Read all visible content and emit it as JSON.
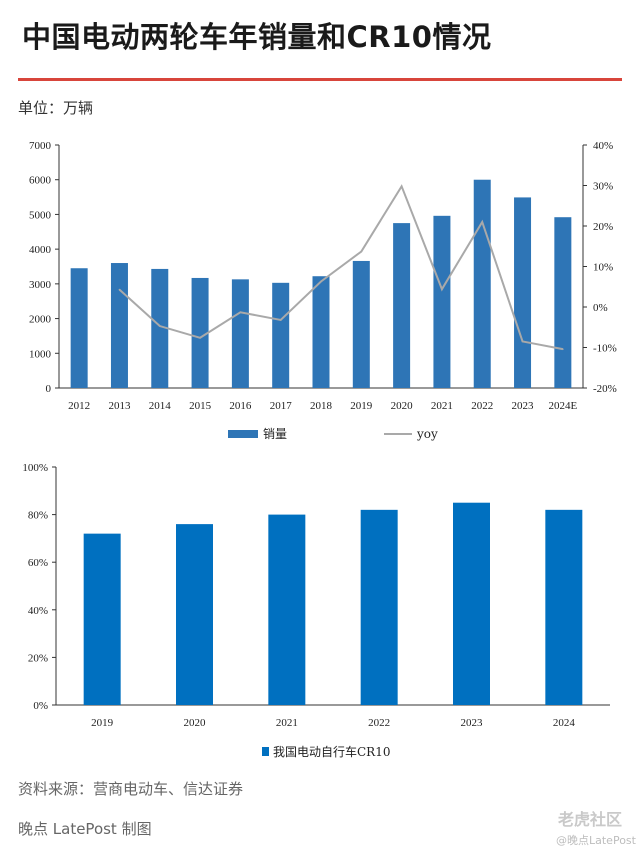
{
  "title": "中国电动两轮车年销量和CR10情况",
  "unit_label": "单位：万辆",
  "source": "资料来源：营商电动车、信达证券",
  "credit": "晚点 LatePost 制图",
  "watermark_1": "老虎社区",
  "watermark_2": "@晚点LatePost",
  "colors": {
    "bar": "#2e75b6",
    "bar2": "#0070c0",
    "line": "#a9a9a9",
    "accent": "#d8453b"
  },
  "chart_data": [
    {
      "type": "bar",
      "categories": [
        "2012",
        "2013",
        "2014",
        "2015",
        "2016",
        "2017",
        "2018",
        "2019",
        "2020",
        "2021",
        "2022",
        "2023",
        "2024E"
      ],
      "series": [
        {
          "name": "销量",
          "type": "bar",
          "axis": "left",
          "values": [
            3450,
            3600,
            3430,
            3170,
            3130,
            3030,
            3220,
            3660,
            4750,
            4960,
            6000,
            5490,
            4920
          ]
        },
        {
          "name": "yoy",
          "type": "line",
          "axis": "right",
          "values": [
            null,
            4.3,
            -4.7,
            -7.6,
            -1.3,
            -3.2,
            6.3,
            13.7,
            29.8,
            4.4,
            21.0,
            -8.5,
            -10.4
          ]
        }
      ],
      "yticks_left": [
        "0",
        "1000",
        "2000",
        "3000",
        "4000",
        "5000",
        "6000",
        "7000"
      ],
      "yticks_right": [
        "-20%",
        "-10%",
        "0%",
        "10%",
        "20%",
        "30%",
        "40%"
      ],
      "ylim_left": [
        0,
        7000
      ],
      "ylim_right": [
        -20,
        40
      ],
      "legend": [
        "销量",
        "yoy"
      ],
      "legend_position": "bottom",
      "grid": false
    },
    {
      "type": "bar",
      "categories": [
        "2019",
        "2020",
        "2021",
        "2022",
        "2023",
        "2024"
      ],
      "series": [
        {
          "name": "我国电动自行车CR10",
          "values": [
            72,
            76,
            80,
            82,
            85,
            82
          ]
        }
      ],
      "yticks": [
        "0%",
        "20%",
        "40%",
        "60%",
        "80%",
        "100%"
      ],
      "ylim": [
        0,
        100
      ],
      "legend": [
        "我国电动自行车CR10"
      ],
      "legend_position": "bottom",
      "grid": false
    }
  ]
}
